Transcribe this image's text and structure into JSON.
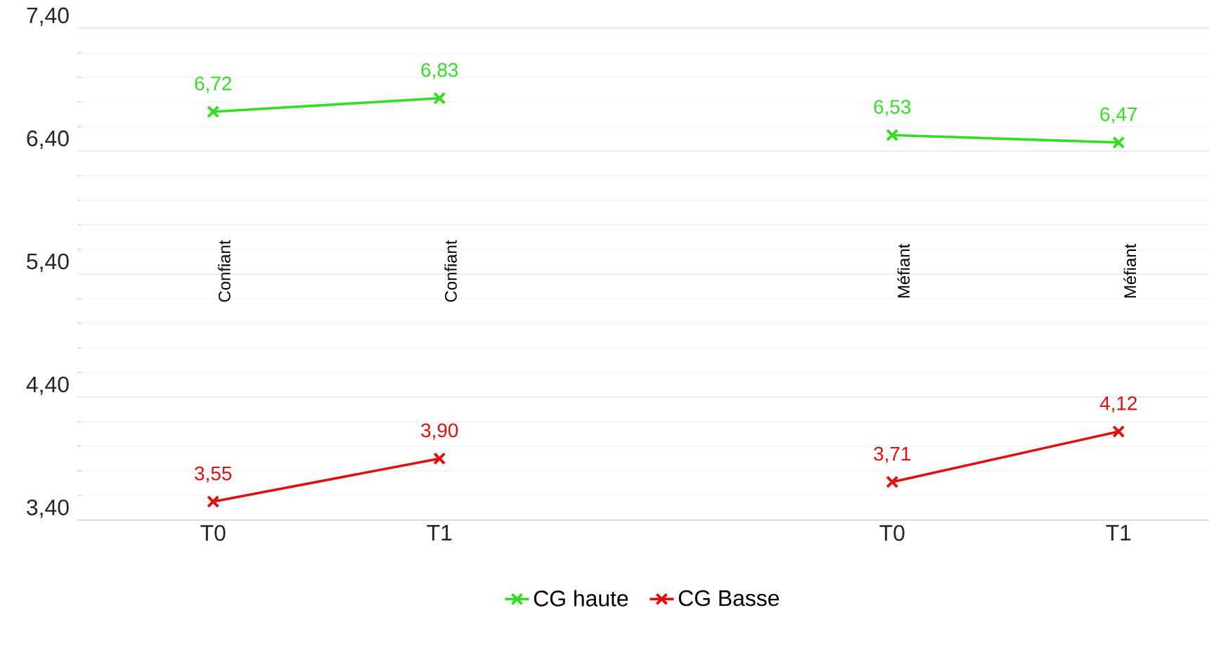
{
  "chart_data": {
    "type": "line",
    "categories": [
      "T0",
      "T1",
      null,
      "T0",
      "T1"
    ],
    "series": [
      {
        "name": "CG haute",
        "color": "#33dd22",
        "values": [
          6.72,
          6.83,
          null,
          6.53,
          6.47
        ],
        "value_labels": [
          "6,72",
          "6,83",
          null,
          "6,53",
          "6,47"
        ]
      },
      {
        "name": "CG Basse",
        "color": "#e01010",
        "values": [
          3.55,
          3.9,
          null,
          3.71,
          4.12
        ],
        "value_labels": [
          "3,55",
          "3,90",
          null,
          "3,71",
          "4,12"
        ]
      }
    ],
    "annotations": [
      "Confiant",
      "Confiant",
      "Méfiant",
      "Méfiant"
    ],
    "ylim": [
      3.4,
      7.4
    ],
    "yticks": [
      {
        "value": 3.4,
        "label": "3,40"
      },
      {
        "value": 4.4,
        "label": "4,40"
      },
      {
        "value": 5.4,
        "label": "5,40"
      },
      {
        "value": 6.4,
        "label": "6,40"
      },
      {
        "value": 7.4,
        "label": "7,40"
      }
    ],
    "grid": "y",
    "legend": "bottom",
    "marker": "cross",
    "line_style": "solid"
  }
}
